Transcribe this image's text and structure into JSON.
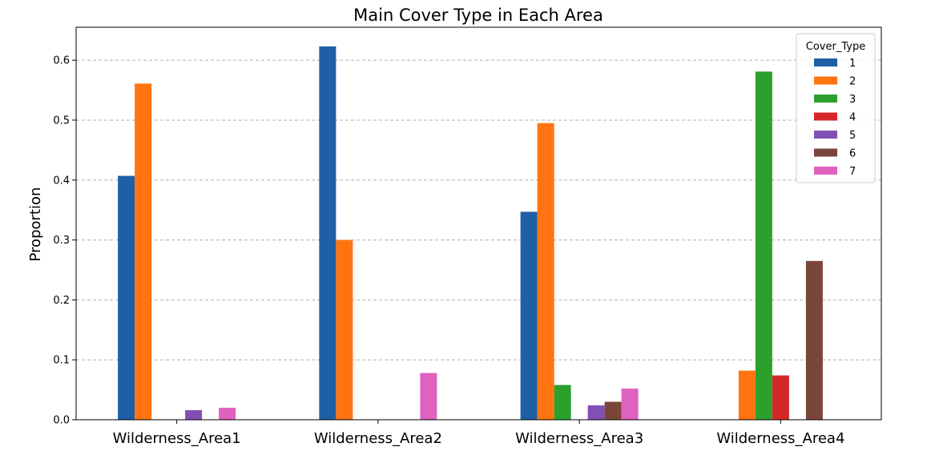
{
  "chart_data": {
    "type": "bar",
    "title": "Main Cover Type in Each Area",
    "xlabel": "",
    "ylabel": "Proportion",
    "categories": [
      "Wilderness_Area1",
      "Wilderness_Area2",
      "Wilderness_Area3",
      "Wilderness_Area4"
    ],
    "ylim": [
      0,
      0.655
    ],
    "yticks": [
      0.0,
      0.1,
      0.2,
      0.3,
      0.4,
      0.5,
      0.6
    ],
    "ytick_labels": [
      "0.0",
      "0.1",
      "0.2",
      "0.3",
      "0.4",
      "0.5",
      "0.6"
    ],
    "grid": "horizontal dashed",
    "legend": {
      "title": "Cover_Type",
      "placement": "top-right"
    },
    "series": [
      {
        "name": "1",
        "color": "#1f5fa6",
        "values": [
          0.407,
          0.623,
          0.347,
          0.0
        ]
      },
      {
        "name": "2",
        "color": "#ff7410",
        "values": [
          0.561,
          0.3,
          0.495,
          0.082
        ]
      },
      {
        "name": "3",
        "color": "#2ca02c",
        "values": [
          0.0,
          0.0,
          0.058,
          0.581
        ]
      },
      {
        "name": "4",
        "color": "#d62728",
        "values": [
          0.0,
          0.0,
          0.0,
          0.074
        ]
      },
      {
        "name": "5",
        "color": "#8250b4",
        "values": [
          0.016,
          0.0,
          0.024,
          0.0
        ]
      },
      {
        "name": "6",
        "color": "#7a463a",
        "values": [
          0.0,
          0.0,
          0.03,
          0.265
        ]
      },
      {
        "name": "7",
        "color": "#e062c0",
        "values": [
          0.02,
          0.078,
          0.052,
          0.0
        ]
      }
    ]
  }
}
